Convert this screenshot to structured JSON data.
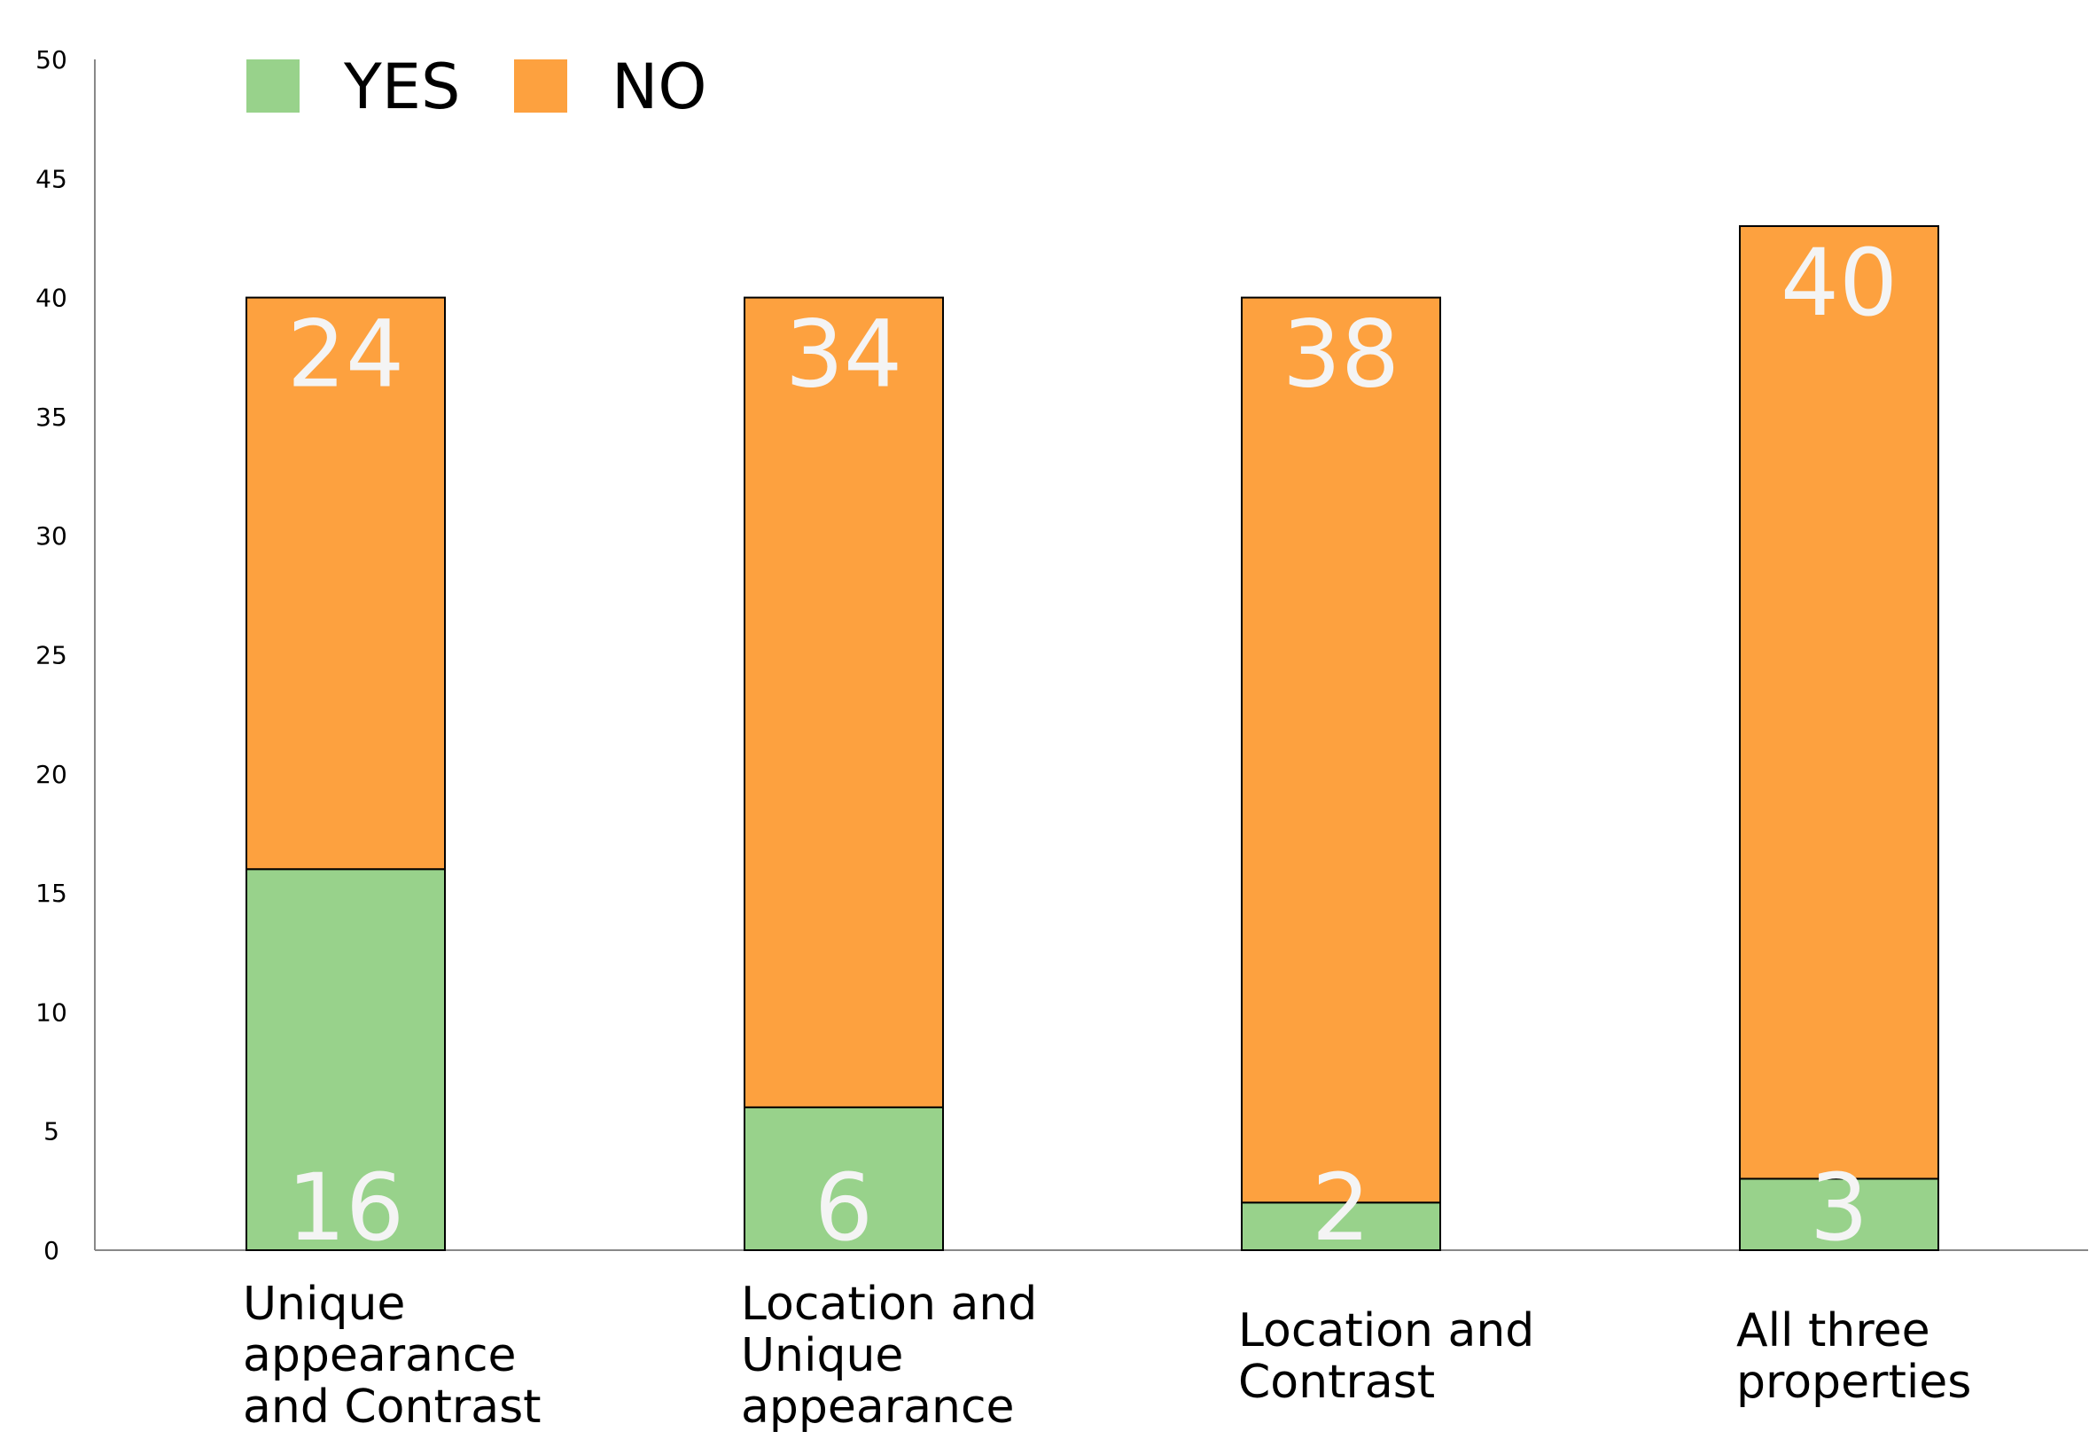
{
  "chart_data": {
    "type": "bar",
    "stacked": true,
    "title": "",
    "xlabel": "",
    "ylabel": "",
    "ylim": [
      0,
      50
    ],
    "yticks": [
      0,
      5,
      10,
      15,
      20,
      25,
      30,
      35,
      40,
      45,
      50
    ],
    "grid": false,
    "legend_position": "top-left",
    "categories": [
      [
        "Unique",
        "appearance",
        "and Contrast"
      ],
      [
        "Location and",
        "Unique",
        "appearance"
      ],
      [
        "Location and",
        "Contrast"
      ],
      [
        "All three",
        "properties"
      ]
    ],
    "series": [
      {
        "name": "YES",
        "color": "#98d28b",
        "values": [
          16,
          6,
          2,
          3
        ]
      },
      {
        "name": "NO",
        "color": "#fda13f",
        "values": [
          24,
          34,
          38,
          40
        ]
      }
    ],
    "data_labels": true,
    "data_label_color": "#f4f4f4"
  }
}
